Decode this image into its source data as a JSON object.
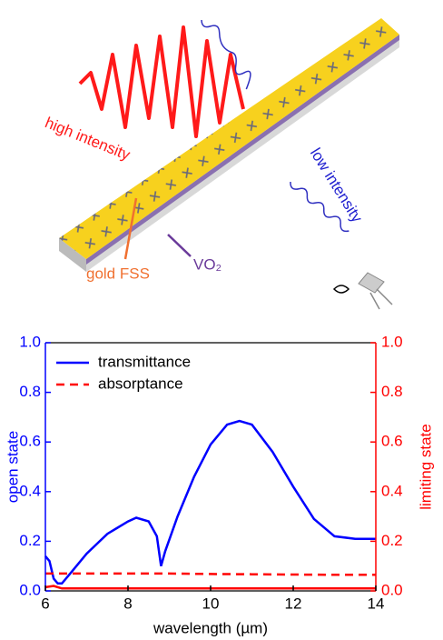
{
  "illustration": {
    "labels": [
      "high intensity",
      "low intensity",
      "gold FSS",
      "VO₂"
    ]
  },
  "chart_data": {
    "type": "line",
    "xlabel": "wavelength (µm)",
    "ylabel": "open state",
    "y2label": "limiting state",
    "xlim": [
      6,
      14
    ],
    "xticks": [
      6,
      8,
      10,
      12,
      14
    ],
    "ylim": [
      0,
      1
    ],
    "yticks": [
      {
        "value": 0,
        "label": "0.0"
      },
      {
        "value": 0.2,
        "label": "0.2"
      },
      {
        "value": 0.4,
        "label": "0.4"
      },
      {
        "value": 0.6,
        "label": "0.6"
      },
      {
        "value": 0.8,
        "label": "0.8"
      },
      {
        "value": 1,
        "label": "1.0"
      }
    ],
    "y2lim": [
      0,
      1
    ],
    "y2ticks": [
      {
        "value": 0,
        "label": "0.0"
      },
      {
        "value": 0.2,
        "label": "0.2"
      },
      {
        "value": 0.4,
        "label": "0.4"
      },
      {
        "value": 0.6,
        "label": "0.6"
      },
      {
        "value": 0.8,
        "label": "0.8"
      },
      {
        "value": 1,
        "label": "1.0"
      }
    ],
    "ycolor": "#0000ff",
    "y2color": "#ff0000",
    "series": [
      {
        "name": "transmittance",
        "color": "#0000ff",
        "dash": "solid",
        "x": [
          6.0,
          6.1,
          6.2,
          6.3,
          6.4,
          6.6,
          7.0,
          7.5,
          8.0,
          8.2,
          8.5,
          8.7,
          8.8,
          8.9,
          9.2,
          9.6,
          10.0,
          10.4,
          10.7,
          11.0,
          11.5,
          12.0,
          12.5,
          13.0,
          13.5,
          14.0
        ],
        "values": [
          0.14,
          0.12,
          0.05,
          0.03,
          0.03,
          0.07,
          0.15,
          0.23,
          0.28,
          0.295,
          0.28,
          0.22,
          0.1,
          0.16,
          0.3,
          0.46,
          0.59,
          0.67,
          0.685,
          0.67,
          0.56,
          0.42,
          0.29,
          0.22,
          0.21,
          0.21
        ]
      },
      {
        "name": "absorptance",
        "color": "#ff0000",
        "dash": "dashed",
        "axis": "y2",
        "x": [
          6,
          7,
          8,
          9,
          10,
          11,
          12,
          13,
          14
        ],
        "values": [
          0.07,
          0.07,
          0.07,
          0.07,
          0.068,
          0.067,
          0.066,
          0.065,
          0.065
        ]
      },
      {
        "color": "#ff0000",
        "dash": "solid",
        "axis": "y2",
        "x": [
          6,
          6.2,
          6.4,
          8,
          10,
          12,
          14
        ],
        "values": [
          0.015,
          0.02,
          0.01,
          0.01,
          0.01,
          0.01,
          0.01
        ]
      }
    ]
  }
}
